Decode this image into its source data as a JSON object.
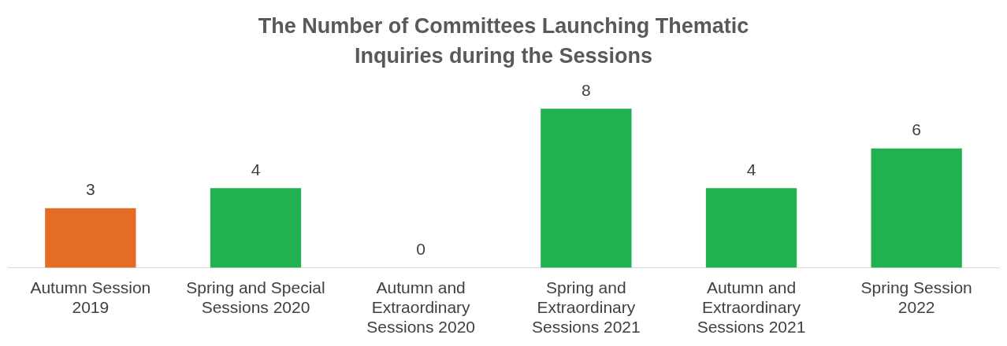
{
  "chart_data": {
    "type": "bar",
    "title": "The Number of Committees Launching Thematic Inquiries during the Sessions",
    "categories": [
      "Autumn Session 2019",
      "Spring and Special Sessions 2020",
      "Autumn and Extraordinary Sessions 2020",
      "Spring and Extraordinary Sessions 2021",
      "Autumn and Extraordinary Sessions 2021",
      "Spring Session 2022"
    ],
    "values": [
      3,
      4,
      0,
      8,
      4,
      6
    ],
    "colors": [
      "#e46c25",
      "#22b151",
      "#22b151",
      "#22b151",
      "#22b151",
      "#22b151"
    ],
    "data_labels": true,
    "grid": false,
    "legend": false
  }
}
